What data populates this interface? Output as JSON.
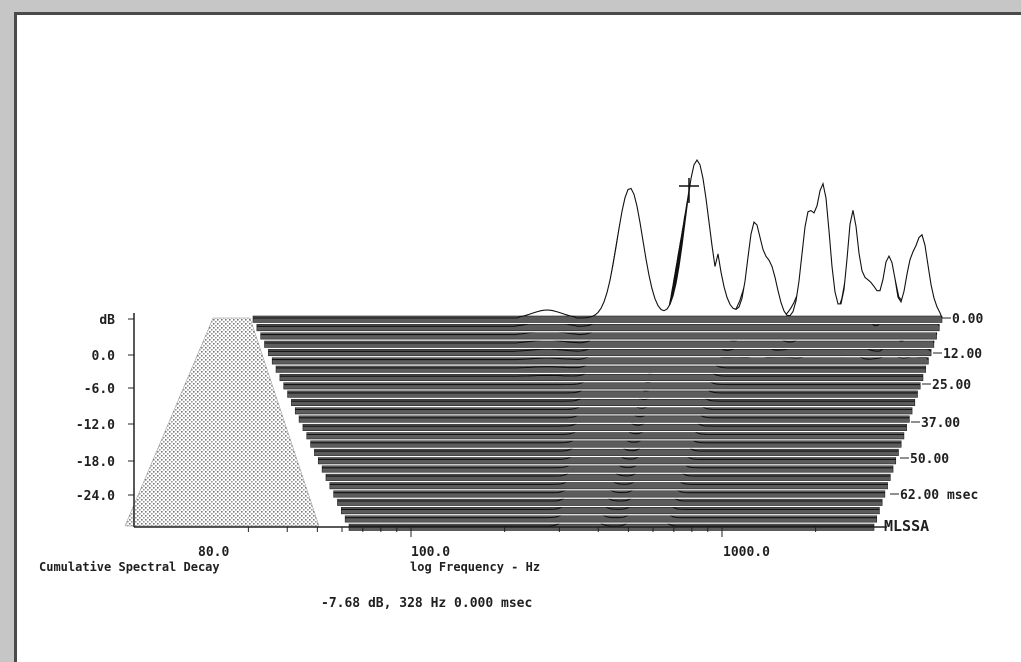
{
  "chart_data": {
    "type": "waterfall",
    "y_axis": {
      "unit_label": "dB",
      "ticks": [
        "0.0",
        "-6.0",
        "-12.0",
        "-18.0",
        "-24.0"
      ],
      "range": [
        -30,
        6
      ]
    },
    "x_axis": {
      "scale": "log",
      "tick_labels": [
        "80.0",
        "100.0",
        "1000.0"
      ],
      "label": "log Frequency - Hz",
      "range": [
        20,
        20000
      ]
    },
    "time_axis": {
      "ticks": [
        "0.00",
        "12.00",
        "25.00",
        "37.00",
        "50.00",
        "62.00"
      ],
      "unit": "msec",
      "values": [
        0,
        12,
        25,
        37,
        50,
        62
      ]
    },
    "title": "Cumulative Spectral Decay",
    "brand": "MLSSA",
    "readout": "-7.68 dB, 328 Hz  0.000 msec",
    "cursor": {
      "level_db": -7.68,
      "frequency_hz": 328,
      "time_ms": 0.0
    },
    "resonances": [
      {
        "frequency_hz": 280,
        "peak_db": -12
      },
      {
        "frequency_hz": 328,
        "peak_db": -7.68
      }
    ]
  }
}
